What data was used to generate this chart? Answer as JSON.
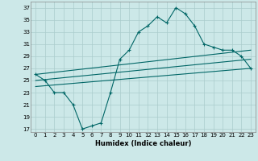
{
  "title": "",
  "xlabel": "Humidex (Indice chaleur)",
  "bg_color": "#cce8e8",
  "grid_color": "#aacccc",
  "line_color": "#006666",
  "xlim": [
    -0.5,
    23.5
  ],
  "ylim": [
    16.5,
    38
  ],
  "yticks": [
    17,
    19,
    21,
    23,
    25,
    27,
    29,
    31,
    33,
    35,
    37
  ],
  "xticks": [
    0,
    1,
    2,
    3,
    4,
    5,
    6,
    7,
    8,
    9,
    10,
    11,
    12,
    13,
    14,
    15,
    16,
    17,
    18,
    19,
    20,
    21,
    22,
    23
  ],
  "main_line_x": [
    0,
    1,
    2,
    3,
    4,
    5,
    6,
    7,
    8,
    9,
    10,
    11,
    12,
    13,
    14,
    15,
    16,
    17,
    18,
    19,
    20,
    21,
    22,
    23
  ],
  "main_line_y": [
    26,
    25,
    23,
    23,
    21,
    17,
    17.5,
    18,
    23,
    28.5,
    30,
    33,
    34,
    35.5,
    34.5,
    37,
    36,
    34,
    31,
    30.5,
    30,
    30,
    29,
    27
  ],
  "trend_line1_x": [
    0,
    23
  ],
  "trend_line1_y": [
    26,
    30
  ],
  "trend_line2_x": [
    0,
    23
  ],
  "trend_line2_y": [
    25,
    28.5
  ],
  "trend_line3_x": [
    0,
    23
  ],
  "trend_line3_y": [
    24,
    27
  ]
}
